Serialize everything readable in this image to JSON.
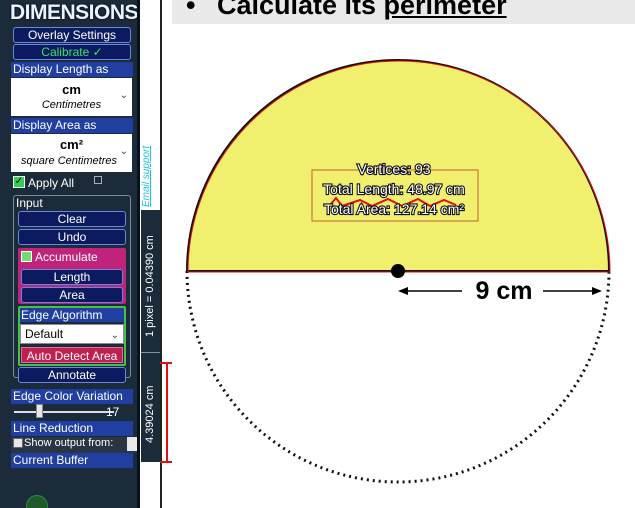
{
  "app": {
    "title": "DIMENSIONS"
  },
  "sidebar": {
    "overlay_settings": "Overlay Settings",
    "calibrate": "Calibrate ✓",
    "display_length_label": "Display Length as",
    "length_unit_short": "cm",
    "length_unit_long": "Centimetres",
    "display_area_label": "Display Area as",
    "area_unit_short": "cm²",
    "area_unit_long": "square Centimetres",
    "apply_all": "Apply All",
    "input_label": "Input",
    "clear": "Clear",
    "undo": "Undo",
    "accumulate": "Accumulate",
    "length": "Length",
    "area": "Area",
    "edge_algorithm_label": "Edge Algorithm",
    "edge_algorithm_value": "Default",
    "auto_detect_area": "Auto Detect Area",
    "annotate": "Annotate",
    "edge_color_variation_label": "Edge Color Variation",
    "edge_color_value": "17",
    "line_reduction_label": "Line Reduction",
    "show_output_from": "Show output from:",
    "current_buffer": "Current Buffer"
  },
  "side_strip": {
    "email_support": "Email support",
    "pixel_scale": "1 pixel = 0.04390 cm",
    "measured_length": "4.39024 cm"
  },
  "document": {
    "bullet": "•",
    "heading_prefix": "Calculate its ",
    "heading_emphasis": "perimeter",
    "diameter_label": "9 cm"
  },
  "measurement_overlay": {
    "vertices": "Vertices: 93",
    "total_length": "Total Length: 48.97 cm",
    "total_area": "Total Area: 127.14 cm²"
  },
  "colors": {
    "semicircle_fill": "#f0f06e",
    "overlay_outline": "#e01010",
    "panel_bg": "#1b2b3a",
    "button_bg": "#0c1b60",
    "accumulate_bg": "#c0237a"
  }
}
